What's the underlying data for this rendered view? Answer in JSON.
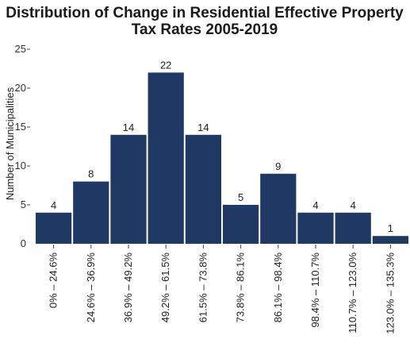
{
  "chart_data": {
    "type": "bar",
    "title_lines": [
      "Distribution of Change in Residential Effective Property",
      "Tax Rates 2005-2019"
    ],
    "xlabel": "",
    "ylabel": "Number of Municipalities",
    "ylim": [
      0,
      25
    ],
    "yticks": [
      "0",
      "5",
      "10",
      "15",
      "20",
      "25"
    ],
    "grid": false,
    "bar_color": "#1f3864",
    "categories": [
      "0% – 24.6%",
      "24.6% – 36.9%",
      "36.9% – 49.2%",
      "49.2% – 61.5%",
      "61.5% – 73.8%",
      "73.8% – 86.1%",
      "86.1% – 98.4%",
      "98.4% – 110.7%",
      "110.7% – 123.0%",
      "123.0% – 135.3%"
    ],
    "values": [
      4,
      8,
      14,
      22,
      14,
      5,
      9,
      4,
      4,
      1
    ]
  }
}
